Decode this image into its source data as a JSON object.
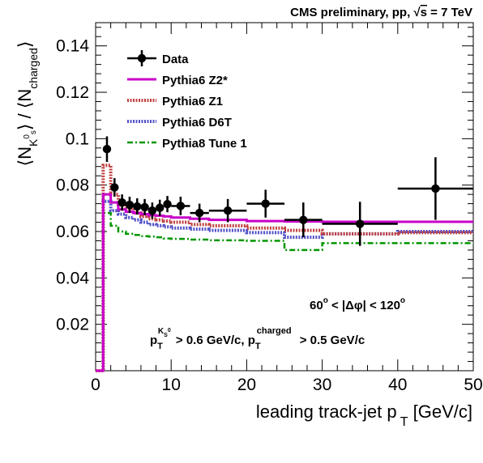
{
  "chart_data": {
    "type": "line",
    "title": "CMS preliminary, pp, √s = 7 TeV",
    "xlabel": "leading track-jet p T [GeV/c]",
    "ylabel": "⟨N K0s⟩ / ⟨N charged⟩",
    "xlim": [
      0,
      50
    ],
    "ylim": [
      0,
      0.15
    ],
    "x_ticks": [
      "0",
      "10",
      "20",
      "30",
      "40",
      "50"
    ],
    "y_ticks": [
      "0.02",
      "0.04",
      "0.06",
      "0.08",
      "0.1",
      "0.12",
      "0.14"
    ],
    "legend_position": "top-left",
    "annotations": {
      "dphi": "60° < |Δφ| < 120°",
      "cuts": "pT K0s > 0.6 GeV/c, pT charged > 0.5 GeV/c"
    },
    "data_series": {
      "name": "Data",
      "points": [
        {
          "x": 1.5,
          "xerr": 0.5,
          "y": 0.0955,
          "yerr": 0.0055
        },
        {
          "x": 2.5,
          "xerr": 0.5,
          "y": 0.079,
          "yerr": 0.004
        },
        {
          "x": 3.5,
          "xerr": 0.5,
          "y": 0.0725,
          "yerr": 0.0035
        },
        {
          "x": 4.5,
          "xerr": 0.5,
          "y": 0.0715,
          "yerr": 0.0035
        },
        {
          "x": 5.5,
          "xerr": 0.5,
          "y": 0.0708,
          "yerr": 0.0035
        },
        {
          "x": 6.5,
          "xerr": 0.5,
          "y": 0.0705,
          "yerr": 0.0035
        },
        {
          "x": 7.5,
          "xerr": 0.5,
          "y": 0.069,
          "yerr": 0.0035
        },
        {
          "x": 8.5,
          "xerr": 0.5,
          "y": 0.0702,
          "yerr": 0.0035
        },
        {
          "x": 9.5,
          "xerr": 0.5,
          "y": 0.0718,
          "yerr": 0.0035
        },
        {
          "x": 11.25,
          "xerr": 1.25,
          "y": 0.071,
          "yerr": 0.004
        },
        {
          "x": 13.75,
          "xerr": 1.25,
          "y": 0.068,
          "yerr": 0.004
        },
        {
          "x": 17.5,
          "xerr": 2.5,
          "y": 0.069,
          "yerr": 0.005
        },
        {
          "x": 22.5,
          "xerr": 2.5,
          "y": 0.072,
          "yerr": 0.006
        },
        {
          "x": 27.5,
          "xerr": 2.5,
          "y": 0.065,
          "yerr": 0.0075
        },
        {
          "x": 35,
          "xerr": 5,
          "y": 0.0633,
          "yerr": 0.0095
        },
        {
          "x": 45,
          "xerr": 5,
          "y": 0.0785,
          "yerr": 0.0135
        }
      ]
    },
    "mc_series": [
      {
        "name": "Pythia6 Z2*",
        "color": "#c800c8",
        "style": "solid",
        "edges": [
          0,
          1,
          2,
          3,
          4,
          5,
          6,
          7,
          8,
          9,
          10,
          12.5,
          15,
          20,
          25,
          30,
          40,
          50
        ],
        "values": [
          0,
          0.076,
          0.0725,
          0.0695,
          0.0685,
          0.068,
          0.0675,
          0.067,
          0.0668,
          0.0665,
          0.066,
          0.0655,
          0.065,
          0.0645,
          0.0643,
          0.0642,
          0.0642
        ]
      },
      {
        "name": "Pythia6 Z1",
        "color": "#c04040",
        "style": "dotted",
        "edges": [
          0,
          1,
          2,
          3,
          4,
          5,
          6,
          7,
          8,
          9,
          10,
          12.5,
          15,
          20,
          25,
          30,
          40,
          50
        ],
        "values": [
          0,
          0.0885,
          0.076,
          0.0715,
          0.07,
          0.068,
          0.0665,
          0.0655,
          0.065,
          0.0645,
          0.064,
          0.063,
          0.0625,
          0.0615,
          0.0605,
          0.059,
          0.0595
        ]
      },
      {
        "name": "Pythia6 D6T",
        "color": "#5050c8",
        "style": "dotted",
        "edges": [
          0,
          1,
          2,
          3,
          4,
          5,
          6,
          7,
          8,
          9,
          10,
          12.5,
          15,
          20,
          25,
          30,
          40,
          50
        ],
        "values": [
          0,
          0.073,
          0.069,
          0.0675,
          0.066,
          0.065,
          0.064,
          0.063,
          0.0625,
          0.062,
          0.0615,
          0.061,
          0.0605,
          0.0595,
          0.0575,
          0.059,
          0.06
        ]
      },
      {
        "name": "Pythia8 Tune 1",
        "color": "#009600",
        "style": "dashdot",
        "edges": [
          0,
          1,
          2,
          3,
          4,
          5,
          6,
          7,
          8,
          9,
          10,
          12.5,
          15,
          20,
          25,
          30,
          40,
          50
        ],
        "values": [
          0,
          0.068,
          0.0625,
          0.06,
          0.059,
          0.0585,
          0.058,
          0.0578,
          0.0575,
          0.057,
          0.0568,
          0.0565,
          0.0562,
          0.056,
          0.052,
          0.055,
          0.055
        ]
      }
    ]
  }
}
